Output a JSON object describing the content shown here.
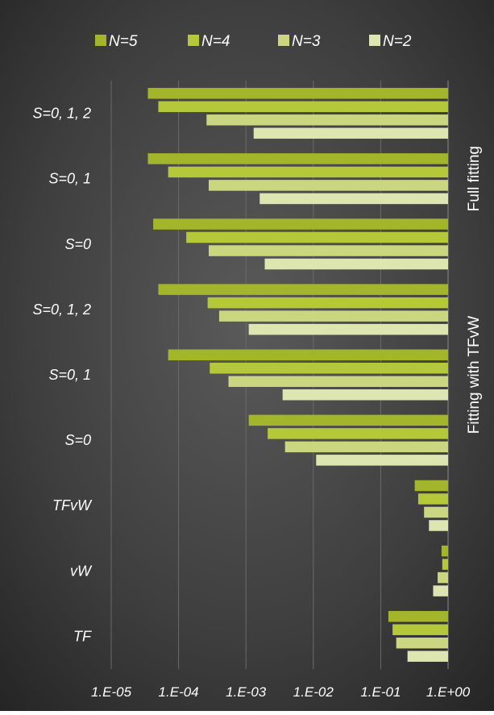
{
  "chart_data": {
    "type": "bar",
    "orientation": "horizontal",
    "x_scale": "log",
    "xlim": [
      1e-05,
      1
    ],
    "x_ticks": [
      "1.E-05",
      "1.E-04",
      "1.E-03",
      "1.E-02",
      "1.E-01",
      "1.E+00"
    ],
    "grid": "vertical",
    "legend_position": "top",
    "categories": [
      "S=0, 1, 2",
      "S=0, 1",
      "S=0",
      "S=0, 1, 2",
      "S=0, 1",
      "S=0",
      "TFvW",
      "vW",
      "TF"
    ],
    "group_labels": [
      {
        "text": "Full fitting",
        "from": 0,
        "to": 2
      },
      {
        "text": "Fitting with TFvW",
        "from": 3,
        "to": 5
      }
    ],
    "series": [
      {
        "name": "N=5",
        "color": "#a3b52a",
        "values": [
          3.5e-05,
          3.5e-05,
          4.2e-05,
          5e-05,
          7e-05,
          0.0011,
          0.32,
          0.8,
          0.13
        ]
      },
      {
        "name": "N=4",
        "color": "#b4c83a",
        "values": [
          5e-05,
          7e-05,
          0.00013,
          0.00027,
          0.00029,
          0.0021,
          0.36,
          0.82,
          0.15
        ]
      },
      {
        "name": "N=3",
        "color": "#cad780",
        "values": [
          0.00026,
          0.00028,
          0.00028,
          0.0004,
          0.00055,
          0.0038,
          0.44,
          0.7,
          0.17
        ]
      },
      {
        "name": "N=2",
        "color": "#dde5b0",
        "values": [
          0.0013,
          0.0016,
          0.0019,
          0.0011,
          0.0035,
          0.011,
          0.52,
          0.6,
          0.25
        ]
      }
    ]
  }
}
